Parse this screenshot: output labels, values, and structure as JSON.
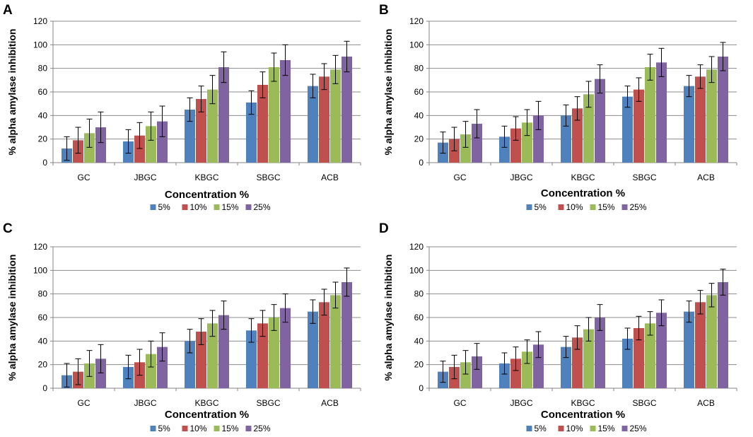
{
  "colors": {
    "5%": "#4F81BD",
    "10%": "#C0504D",
    "15%": "#9BBB59",
    "25%": "#8064A2",
    "grid": "#8C8C8C",
    "axis": "#868686",
    "error_bar": "#000000"
  },
  "chart_data": [
    {
      "type": "bar",
      "panel_label": "A",
      "title": "",
      "xlabel": "Concentration %",
      "ylabel": "% alpha amylase inhibition",
      "ylim": [
        0,
        120
      ],
      "yticks": [
        "0",
        "20",
        "40",
        "60",
        "80",
        "100",
        "120"
      ],
      "grid": true,
      "legend_position": "bottom",
      "categories": [
        "GC",
        "JBGC",
        "KBGC",
        "SBGC",
        "ACB"
      ],
      "series": [
        {
          "name": "5%",
          "values": [
            12,
            18,
            45,
            51,
            65
          ],
          "errors": [
            10,
            10,
            10,
            10,
            10
          ]
        },
        {
          "name": "10%",
          "values": [
            19,
            23,
            54,
            66,
            73
          ],
          "errors": [
            11,
            11,
            11,
            11,
            11
          ]
        },
        {
          "name": "15%",
          "values": [
            25,
            31,
            62,
            81,
            79
          ],
          "errors": [
            12,
            12,
            12,
            12,
            12
          ]
        },
        {
          "name": "25%",
          "values": [
            30,
            35,
            81,
            87,
            90
          ],
          "errors": [
            13,
            13,
            13,
            13,
            13
          ]
        }
      ]
    },
    {
      "type": "bar",
      "panel_label": "B",
      "title": "",
      "xlabel": "Concentration %",
      "ylabel": "% alpha amylase inhibition",
      "ylim": [
        0,
        120
      ],
      "yticks": [
        "0",
        "20",
        "40",
        "60",
        "80",
        "100",
        "120"
      ],
      "grid": true,
      "legend_position": "bottom",
      "categories": [
        "GC",
        "JBGC",
        "KBGC",
        "SBGC",
        "ACB"
      ],
      "series": [
        {
          "name": "5%",
          "values": [
            17,
            22,
            40,
            56,
            65
          ],
          "errors": [
            9,
            9,
            9,
            9,
            9
          ]
        },
        {
          "name": "10%",
          "values": [
            20,
            29,
            46,
            62,
            73
          ],
          "errors": [
            10,
            10,
            10,
            10,
            10
          ]
        },
        {
          "name": "15%",
          "values": [
            24,
            34,
            58,
            81,
            79
          ],
          "errors": [
            11,
            11,
            11,
            11,
            11
          ]
        },
        {
          "name": "25%",
          "values": [
            33,
            40,
            71,
            85,
            90
          ],
          "errors": [
            12,
            12,
            12,
            12,
            12
          ]
        }
      ]
    },
    {
      "type": "bar",
      "panel_label": "C",
      "title": "",
      "xlabel": "Concentration %",
      "ylabel": "% alpha amylase inhibition",
      "ylim": [
        0,
        120
      ],
      "yticks": [
        "0",
        "20",
        "40",
        "60",
        "80",
        "100",
        "120"
      ],
      "grid": true,
      "legend_position": "bottom",
      "categories": [
        "GC",
        "JBGC",
        "KBGC",
        "SBGC",
        "ACB"
      ],
      "series": [
        {
          "name": "5%",
          "values": [
            11,
            18,
            40,
            49,
            65
          ],
          "errors": [
            10,
            10,
            10,
            10,
            10
          ]
        },
        {
          "name": "10%",
          "values": [
            14,
            22,
            48,
            55,
            73
          ],
          "errors": [
            11,
            11,
            11,
            11,
            11
          ]
        },
        {
          "name": "15%",
          "values": [
            21,
            29,
            55,
            60,
            79
          ],
          "errors": [
            11,
            11,
            11,
            11,
            11
          ]
        },
        {
          "name": "25%",
          "values": [
            25,
            35,
            62,
            68,
            90
          ],
          "errors": [
            12,
            12,
            12,
            12,
            12
          ]
        }
      ]
    },
    {
      "type": "bar",
      "panel_label": "D",
      "title": "",
      "xlabel": "Concentration %",
      "ylabel": "% alpha amylase inhibition",
      "ylim": [
        0,
        120
      ],
      "yticks": [
        "0",
        "20",
        "40",
        "60",
        "80",
        "100",
        "120"
      ],
      "grid": true,
      "legend_position": "bottom",
      "categories": [
        "GC",
        "JBGC",
        "KBGC",
        "SBGC",
        "ACB"
      ],
      "series": [
        {
          "name": "5%",
          "values": [
            14,
            21,
            35,
            42,
            65
          ],
          "errors": [
            9,
            9,
            9,
            9,
            9
          ]
        },
        {
          "name": "10%",
          "values": [
            18,
            25,
            43,
            51,
            73
          ],
          "errors": [
            10,
            10,
            10,
            10,
            10
          ]
        },
        {
          "name": "15%",
          "values": [
            22,
            31,
            50,
            55,
            79
          ],
          "errors": [
            10,
            10,
            10,
            10,
            10
          ]
        },
        {
          "name": "25%",
          "values": [
            27,
            37,
            60,
            64,
            90
          ],
          "errors": [
            11,
            11,
            11,
            11,
            11
          ]
        }
      ]
    }
  ]
}
